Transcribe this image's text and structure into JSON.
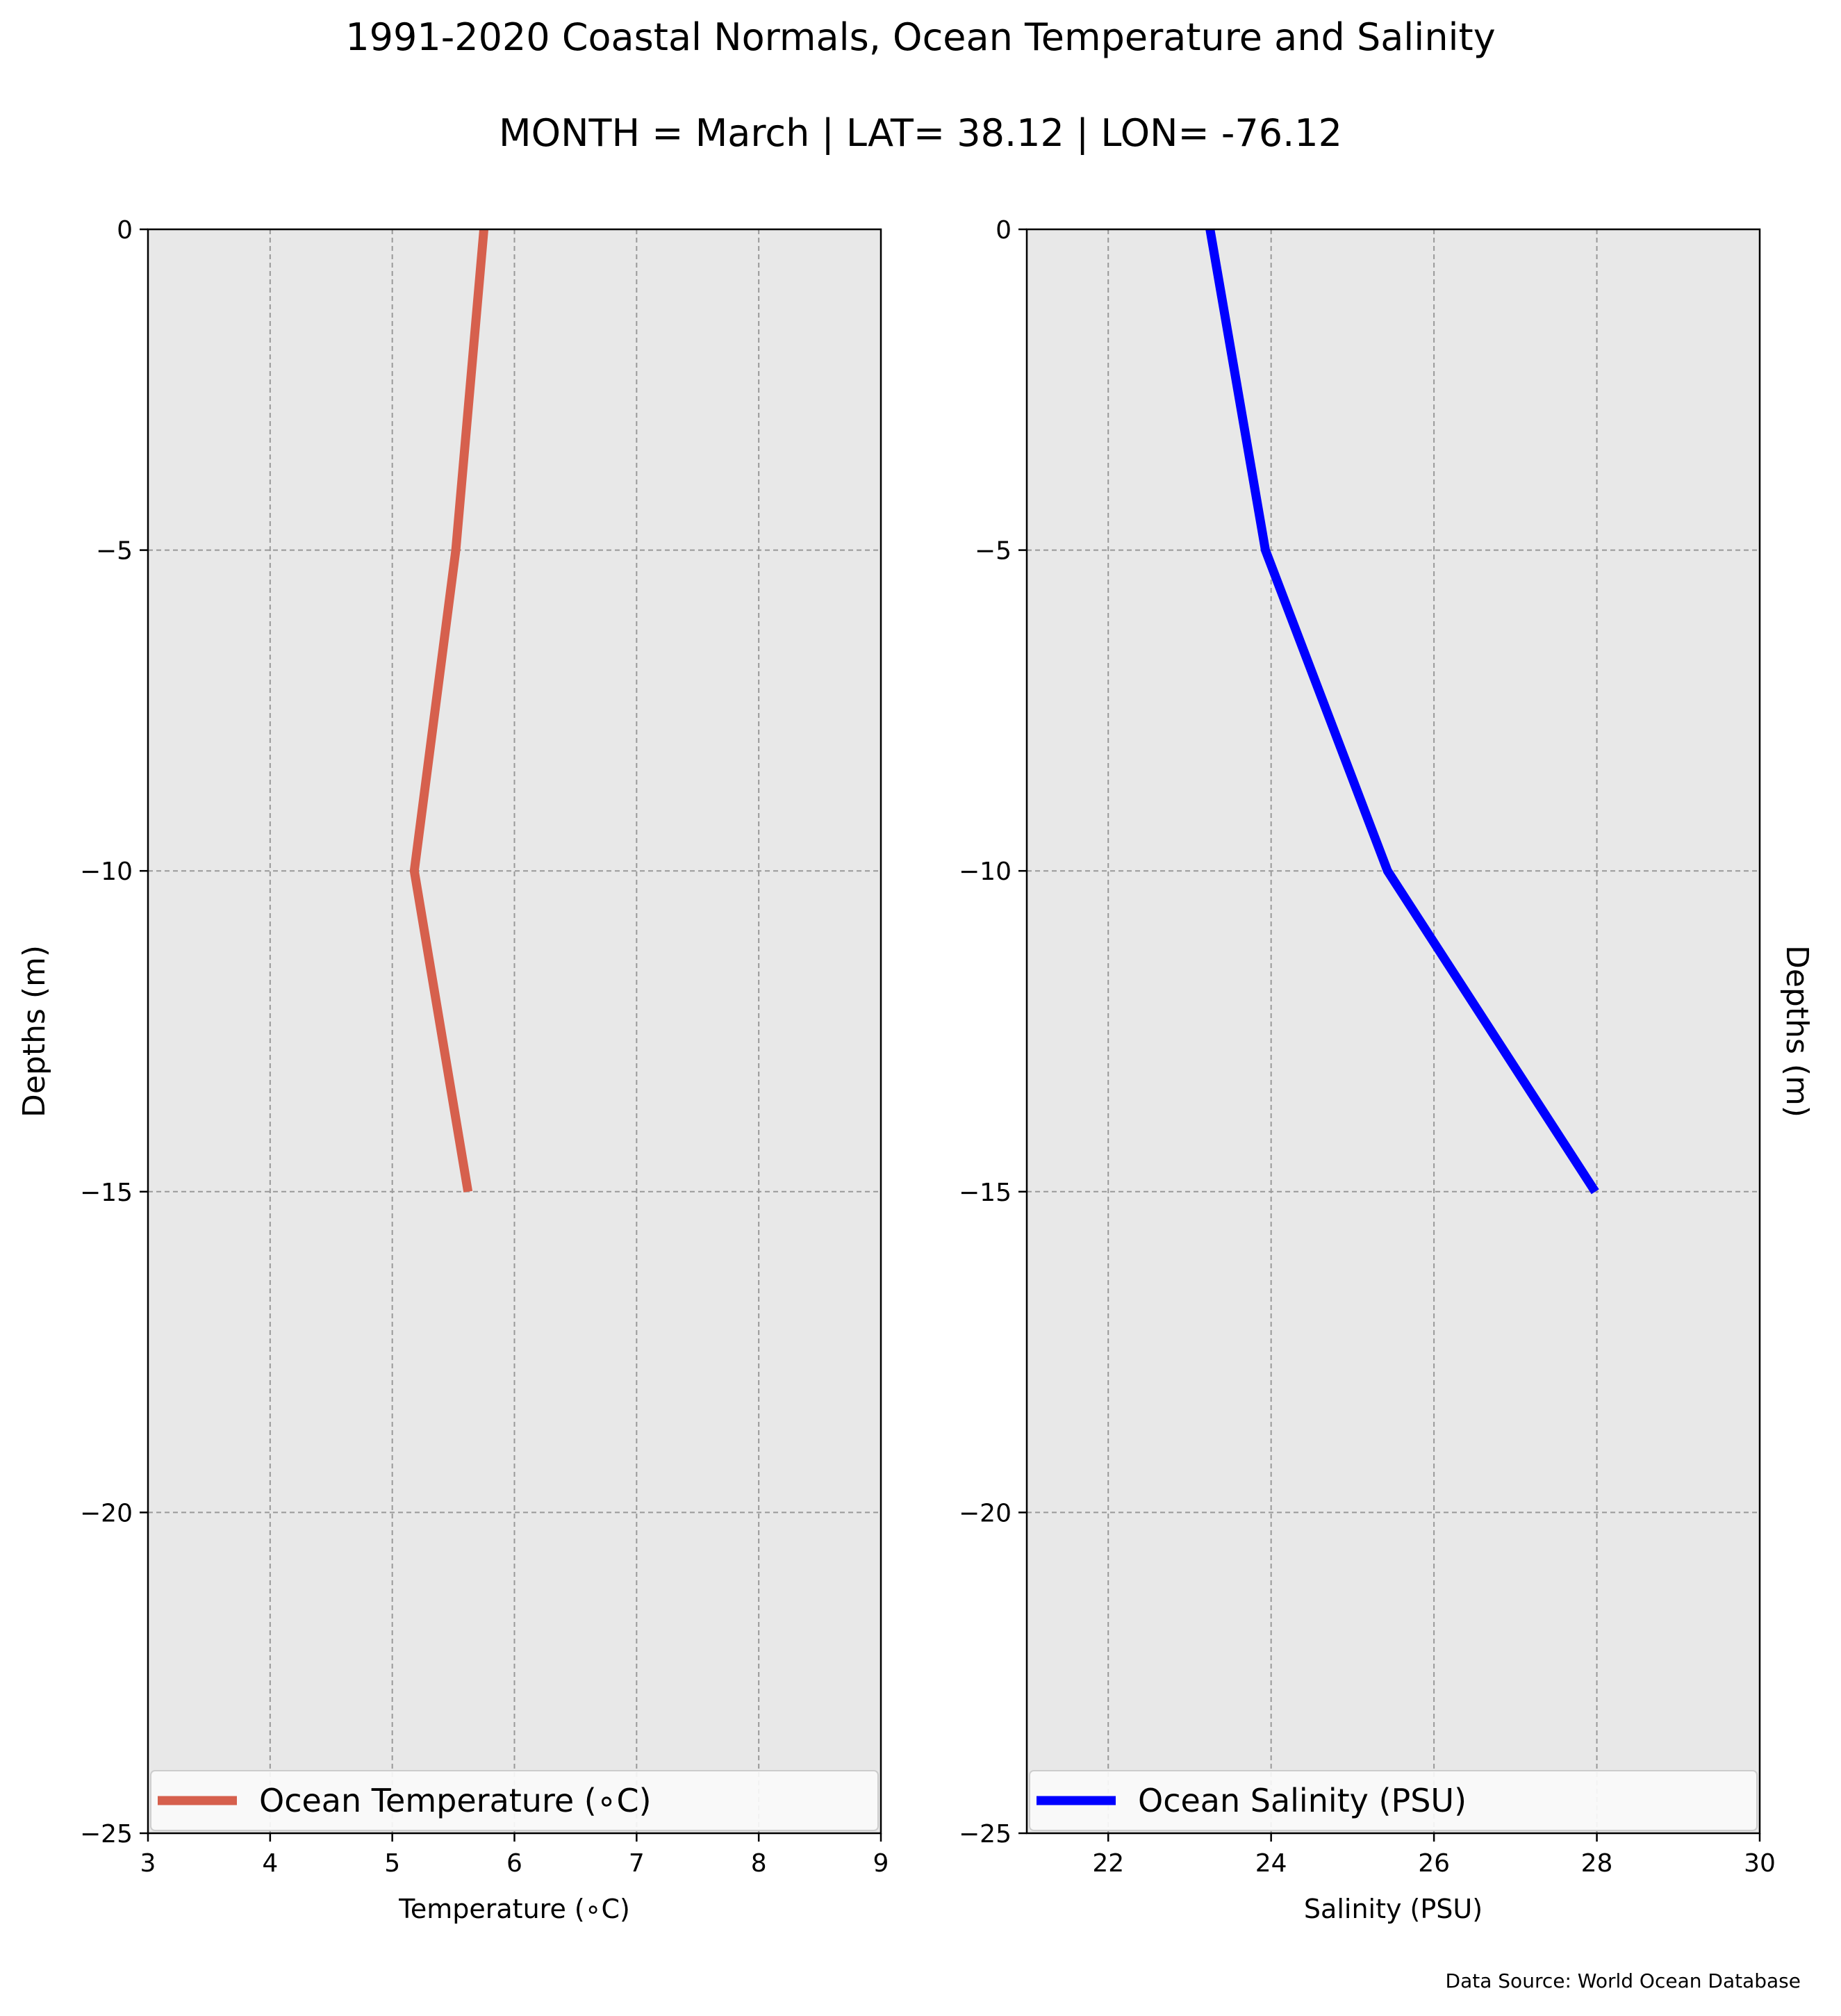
{
  "title": "1991-2020 Coastal Normals, Ocean Temperature and Salinity",
  "subtitle": "MONTH = March | LAT= 38.12 | LON= -76.12",
  "source_note": "Data Source: World Ocean Database",
  "colors": {
    "plot_background": "#e8e8e8",
    "temperature_line": "#d6604d",
    "salinity_line": "#0000ff",
    "grid": "#999999"
  },
  "chart_data": [
    {
      "type": "line",
      "xlabel": "Temperature ($^\\circ$C)",
      "xlabel_display": "Temperature (∘C)",
      "ylabel": "Depths (m)",
      "xlim": [
        3,
        9
      ],
      "ylim": [
        -25,
        0
      ],
      "x_ticks": [
        3,
        4,
        5,
        6,
        7,
        8,
        9
      ],
      "y_ticks": [
        0,
        -5,
        -10,
        -15,
        -20,
        -25
      ],
      "y_tick_labels": [
        "0",
        "−5",
        "−10",
        "−15",
        "−20",
        "−25"
      ],
      "grid": true,
      "legend_position": "bottom",
      "series": [
        {
          "name": "Ocean Temperature (∘C)",
          "depths": [
            0,
            -5,
            -10,
            -15
          ],
          "values": [
            5.75,
            5.52,
            5.18,
            5.62
          ]
        }
      ]
    },
    {
      "type": "line",
      "xlabel": "Salinity (PSU)",
      "ylabel": "Depths (m)",
      "xlim": [
        21,
        30
      ],
      "ylim": [
        -25,
        0
      ],
      "x_ticks": [
        22,
        24,
        26,
        28,
        30
      ],
      "y_ticks": [
        0,
        -5,
        -10,
        -15,
        -20,
        -25
      ],
      "y_tick_labels": [
        "0",
        "−5",
        "−10",
        "−15",
        "−20",
        "−25"
      ],
      "grid": true,
      "legend_position": "bottom",
      "series": [
        {
          "name": "Ocean Salinity (PSU)",
          "depths": [
            0,
            -5,
            -10,
            -15
          ],
          "values": [
            23.25,
            23.93,
            25.43,
            27.98
          ]
        }
      ]
    }
  ]
}
